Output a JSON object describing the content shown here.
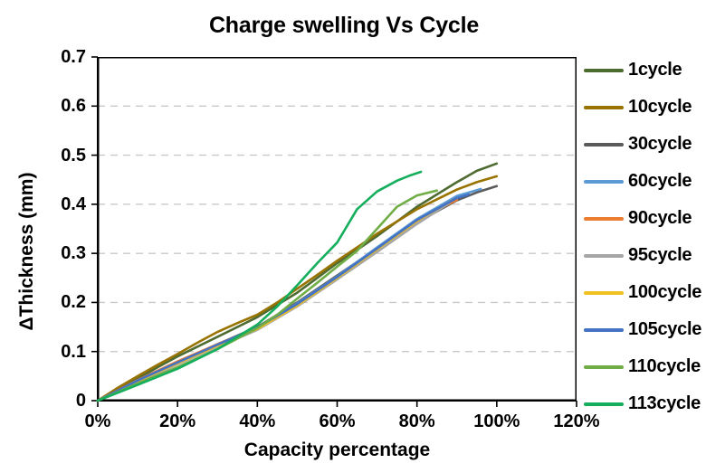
{
  "colors": {
    "background": "#FFFFFF",
    "axis": "#000000",
    "grid": "#C9C9C9",
    "text": "#000000"
  },
  "chart_data": {
    "type": "line",
    "title": "Charge swelling Vs Cycle",
    "xlabel": "Capacity percentage",
    "ylabel": "ΔThickness (mm)",
    "xlim": [
      0,
      120
    ],
    "ylim": [
      0,
      0.7
    ],
    "x_ticks": [
      0,
      20,
      40,
      60,
      80,
      100,
      120
    ],
    "x_tick_labels": [
      "0%",
      "20%",
      "40%",
      "60%",
      "80%",
      "100%",
      "120%"
    ],
    "y_ticks": [
      0,
      0.1,
      0.2,
      0.3,
      0.4,
      0.5,
      0.6,
      0.7
    ],
    "y_tick_labels": [
      "0",
      "0.1",
      "0.2",
      "0.3",
      "0.4",
      "0.5",
      "0.6",
      "0.7"
    ],
    "grid": "horizontal-dashed",
    "legend_position": "right",
    "series": [
      {
        "name": "1cycle",
        "color": "#4E6B31",
        "points": [
          [
            0,
            0
          ],
          [
            5,
            0.022
          ],
          [
            10,
            0.045
          ],
          [
            15,
            0.068
          ],
          [
            20,
            0.09
          ],
          [
            25,
            0.11
          ],
          [
            30,
            0.13
          ],
          [
            35,
            0.15
          ],
          [
            40,
            0.17
          ],
          [
            45,
            0.195
          ],
          [
            50,
            0.22
          ],
          [
            55,
            0.25
          ],
          [
            60,
            0.28
          ],
          [
            65,
            0.307
          ],
          [
            70,
            0.335
          ],
          [
            75,
            0.365
          ],
          [
            80,
            0.395
          ],
          [
            85,
            0.42
          ],
          [
            90,
            0.445
          ],
          [
            95,
            0.468
          ],
          [
            100,
            0.483
          ]
        ]
      },
      {
        "name": "10cycle",
        "color": "#997300",
        "points": [
          [
            0,
            0
          ],
          [
            5,
            0.026
          ],
          [
            10,
            0.05
          ],
          [
            15,
            0.073
          ],
          [
            20,
            0.095
          ],
          [
            25,
            0.118
          ],
          [
            30,
            0.14
          ],
          [
            35,
            0.158
          ],
          [
            40,
            0.175
          ],
          [
            45,
            0.2
          ],
          [
            50,
            0.228
          ],
          [
            55,
            0.256
          ],
          [
            60,
            0.285
          ],
          [
            65,
            0.312
          ],
          [
            70,
            0.34
          ],
          [
            75,
            0.365
          ],
          [
            80,
            0.39
          ],
          [
            85,
            0.41
          ],
          [
            90,
            0.43
          ],
          [
            95,
            0.445
          ],
          [
            100,
            0.457
          ]
        ]
      },
      {
        "name": "30cycle",
        "color": "#5B5B5B",
        "points": [
          [
            0,
            0
          ],
          [
            10,
            0.04
          ],
          [
            20,
            0.078
          ],
          [
            30,
            0.115
          ],
          [
            40,
            0.15
          ],
          [
            50,
            0.2
          ],
          [
            60,
            0.255
          ],
          [
            70,
            0.31
          ],
          [
            80,
            0.363
          ],
          [
            90,
            0.408
          ],
          [
            95,
            0.424
          ],
          [
            100,
            0.437
          ]
        ]
      },
      {
        "name": "60cycle",
        "color": "#5B9BD5",
        "points": [
          [
            0,
            0
          ],
          [
            10,
            0.04
          ],
          [
            20,
            0.077
          ],
          [
            30,
            0.113
          ],
          [
            40,
            0.148
          ],
          [
            50,
            0.198
          ],
          [
            60,
            0.253
          ],
          [
            70,
            0.312
          ],
          [
            80,
            0.37
          ],
          [
            90,
            0.417
          ],
          [
            96,
            0.431
          ]
        ]
      },
      {
        "name": "90cycle",
        "color": "#ED7D31",
        "points": [
          [
            0,
            0
          ],
          [
            10,
            0.042
          ],
          [
            20,
            0.08
          ],
          [
            30,
            0.115
          ],
          [
            40,
            0.148
          ],
          [
            50,
            0.196
          ],
          [
            60,
            0.25
          ],
          [
            70,
            0.306
          ],
          [
            80,
            0.362
          ],
          [
            85,
            0.388
          ],
          [
            90,
            0.409
          ]
        ]
      },
      {
        "name": "95cycle",
        "color": "#A6A6A6",
        "points": [
          [
            0,
            0
          ],
          [
            10,
            0.038
          ],
          [
            20,
            0.074
          ],
          [
            30,
            0.11
          ],
          [
            40,
            0.144
          ],
          [
            50,
            0.192
          ],
          [
            60,
            0.247
          ],
          [
            70,
            0.303
          ],
          [
            80,
            0.36
          ],
          [
            88,
            0.402
          ]
        ]
      },
      {
        "name": "100cycle",
        "color": "#EFC120",
        "points": [
          [
            0,
            0
          ],
          [
            10,
            0.04
          ],
          [
            20,
            0.076
          ],
          [
            30,
            0.112
          ],
          [
            40,
            0.146
          ],
          [
            50,
            0.194
          ],
          [
            60,
            0.25
          ],
          [
            70,
            0.308
          ],
          [
            80,
            0.366
          ],
          [
            89,
            0.409
          ]
        ]
      },
      {
        "name": "105cycle",
        "color": "#4472C4",
        "points": [
          [
            0,
            0
          ],
          [
            10,
            0.041
          ],
          [
            20,
            0.078
          ],
          [
            30,
            0.114
          ],
          [
            40,
            0.149
          ],
          [
            50,
            0.197
          ],
          [
            60,
            0.252
          ],
          [
            70,
            0.31
          ],
          [
            80,
            0.368
          ],
          [
            90,
            0.413
          ],
          [
            93,
            0.42
          ]
        ]
      },
      {
        "name": "110cycle",
        "color": "#70AD47",
        "points": [
          [
            0,
            0
          ],
          [
            10,
            0.035
          ],
          [
            20,
            0.068
          ],
          [
            30,
            0.105
          ],
          [
            40,
            0.148
          ],
          [
            45,
            0.175
          ],
          [
            50,
            0.208
          ],
          [
            55,
            0.24
          ],
          [
            60,
            0.273
          ],
          [
            65,
            0.305
          ],
          [
            70,
            0.35
          ],
          [
            75,
            0.395
          ],
          [
            80,
            0.418
          ],
          [
            85,
            0.428
          ]
        ]
      },
      {
        "name": "113cycle",
        "color": "#14AE5C",
        "points": [
          [
            0,
            0
          ],
          [
            10,
            0.032
          ],
          [
            20,
            0.065
          ],
          [
            30,
            0.105
          ],
          [
            40,
            0.155
          ],
          [
            45,
            0.192
          ],
          [
            50,
            0.235
          ],
          [
            55,
            0.28
          ],
          [
            60,
            0.322
          ],
          [
            65,
            0.39
          ],
          [
            70,
            0.426
          ],
          [
            75,
            0.448
          ],
          [
            78,
            0.458
          ],
          [
            81,
            0.466
          ]
        ]
      }
    ]
  }
}
